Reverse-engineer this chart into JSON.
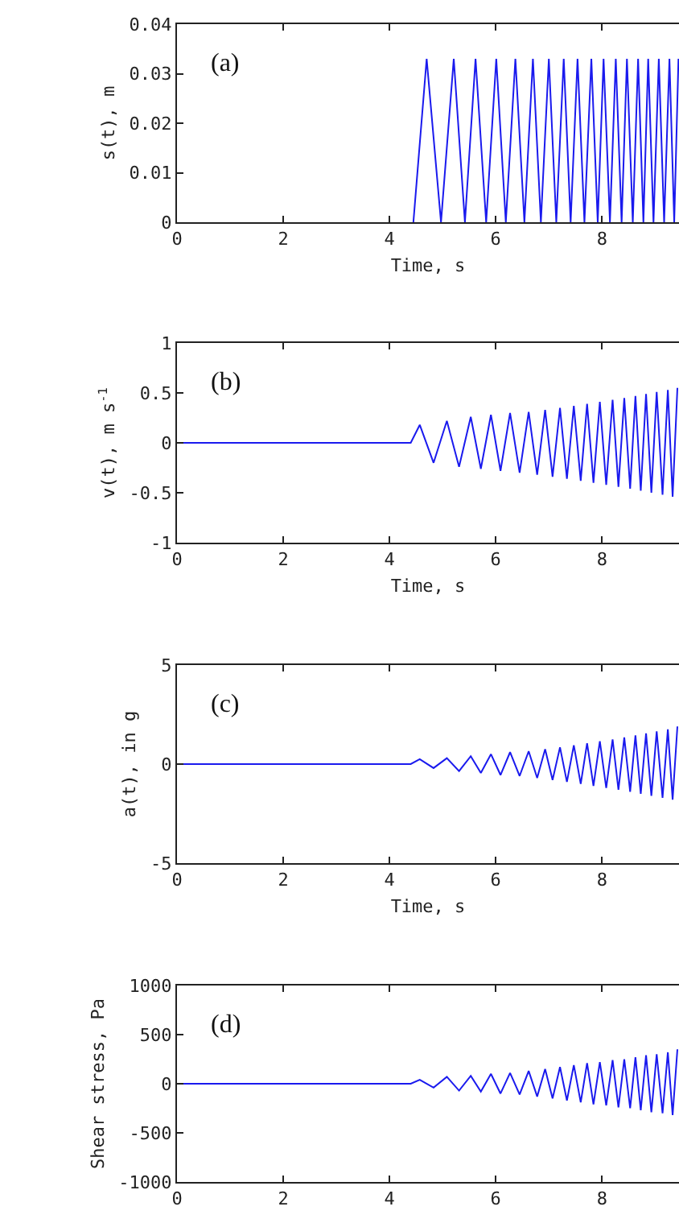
{
  "chart_data": [
    {
      "type": "line",
      "annotations": [
        "(a)"
      ],
      "xlabel": "Time, s",
      "ylabel": "s(t), m",
      "color": "#1a1aee",
      "grid": false,
      "x": [
        4.45,
        4.7,
        4.97,
        5.21,
        5.42,
        5.62,
        5.82,
        6.01,
        6.19,
        6.37,
        6.54,
        6.7,
        6.85,
        7.0,
        7.14,
        7.28,
        7.41,
        7.54,
        7.67,
        7.8,
        7.92,
        8.03,
        8.15,
        8.26,
        8.37,
        8.47,
        8.58,
        8.68,
        8.78,
        8.87,
        8.97,
        9.07,
        9.17,
        9.27,
        9.36,
        9.44
      ],
      "values": [
        0,
        0.033,
        0,
        0.033,
        0,
        0.033,
        0,
        0.033,
        0,
        0.033,
        0,
        0.033,
        0,
        0.033,
        0,
        0.033,
        0,
        0.033,
        0,
        0.033,
        0,
        0.033,
        0,
        0.033,
        0,
        0.033,
        0,
        0.033,
        0,
        0.033,
        0,
        0.033,
        0,
        0.033,
        0,
        0.033
      ],
      "xlim": [
        0,
        9.45
      ],
      "xticks": [
        0,
        2,
        4,
        6,
        8
      ],
      "ylim": [
        0,
        0.04
      ],
      "yticks": [
        0,
        0.01,
        0.02,
        0.03,
        0.04
      ]
    },
    {
      "type": "line",
      "annotations": [
        "(b)"
      ],
      "xlabel": "Time, s",
      "ylabel": "v(t), m s$^{-1}$",
      "color": "#1a1aee",
      "grid": false,
      "x": [
        0,
        4.4,
        4.57,
        4.83,
        5.08,
        5.31,
        5.53,
        5.72,
        5.91,
        6.09,
        6.27,
        6.45,
        6.62,
        6.78,
        6.93,
        7.07,
        7.21,
        7.34,
        7.47,
        7.6,
        7.72,
        7.84,
        7.96,
        8.08,
        8.2,
        8.31,
        8.42,
        8.53,
        8.63,
        8.73,
        8.83,
        8.93,
        9.03,
        9.14,
        9.24,
        9.33,
        9.42
      ],
      "values": [
        0,
        0,
        0.18,
        -0.2,
        0.22,
        -0.24,
        0.26,
        -0.26,
        0.28,
        -0.28,
        0.3,
        -0.3,
        0.31,
        -0.32,
        0.33,
        -0.34,
        0.35,
        -0.36,
        0.37,
        -0.38,
        0.39,
        -0.4,
        0.41,
        -0.42,
        0.43,
        -0.44,
        0.45,
        -0.46,
        0.47,
        -0.48,
        0.49,
        -0.5,
        0.51,
        -0.52,
        0.53,
        -0.54,
        0.55
      ],
      "xlim": [
        0,
        9.45
      ],
      "xticks": [
        0,
        2,
        4,
        6,
        8
      ],
      "ylim": [
        -1,
        1
      ],
      "yticks": [
        -1,
        -0.5,
        0,
        0.5,
        1
      ]
    },
    {
      "type": "line",
      "annotations": [
        "(c)"
      ],
      "xlabel": "Time, s",
      "ylabel": "a(t), in g",
      "color": "#1a1aee",
      "grid": false,
      "x": [
        0,
        4.4,
        4.57,
        4.83,
        5.08,
        5.31,
        5.53,
        5.72,
        5.91,
        6.09,
        6.27,
        6.45,
        6.62,
        6.78,
        6.93,
        7.07,
        7.21,
        7.34,
        7.47,
        7.6,
        7.72,
        7.84,
        7.96,
        8.08,
        8.2,
        8.31,
        8.42,
        8.53,
        8.63,
        8.73,
        8.83,
        8.93,
        9.03,
        9.14,
        9.24,
        9.33,
        9.42
      ],
      "values": [
        0,
        0,
        0.25,
        -0.2,
        0.3,
        -0.35,
        0.4,
        -0.45,
        0.5,
        -0.55,
        0.6,
        -0.6,
        0.65,
        -0.7,
        0.75,
        -0.8,
        0.85,
        -0.9,
        0.95,
        -1.0,
        1.05,
        -1.1,
        1.15,
        -1.2,
        1.25,
        -1.3,
        1.35,
        -1.4,
        1.45,
        -1.5,
        1.55,
        -1.6,
        1.65,
        -1.7,
        1.75,
        -1.8,
        1.9
      ],
      "xlim": [
        0,
        9.45
      ],
      "xticks": [
        0,
        2,
        4,
        6,
        8
      ],
      "ylim": [
        -5,
        5
      ],
      "yticks": [
        -5,
        0,
        5
      ]
    },
    {
      "type": "line",
      "annotations": [
        "(d)"
      ],
      "ylabel": "Shear stress, Pa",
      "color": "#1a1aee",
      "grid": false,
      "x": [
        0,
        4.4,
        4.57,
        4.83,
        5.08,
        5.31,
        5.53,
        5.72,
        5.91,
        6.09,
        6.27,
        6.45,
        6.62,
        6.78,
        6.93,
        7.07,
        7.21,
        7.34,
        7.47,
        7.6,
        7.72,
        7.84,
        7.96,
        8.08,
        8.2,
        8.31,
        8.42,
        8.53,
        8.63,
        8.73,
        8.83,
        8.93,
        9.03,
        9.14,
        9.24,
        9.33,
        9.42
      ],
      "values": [
        0,
        0,
        40,
        -40,
        70,
        -70,
        80,
        -80,
        100,
        -100,
        110,
        -110,
        130,
        -130,
        150,
        -150,
        170,
        -170,
        190,
        -190,
        210,
        -210,
        220,
        -220,
        240,
        -240,
        250,
        -250,
        270,
        -270,
        290,
        -290,
        300,
        -300,
        320,
        -320,
        350
      ],
      "xlim": [
        0,
        9.45
      ],
      "xticks": [
        0,
        2,
        4,
        6,
        8
      ],
      "ylim": [
        -1000,
        1000
      ],
      "yticks": [
        -1000,
        -500,
        0,
        500,
        1000
      ]
    }
  ]
}
